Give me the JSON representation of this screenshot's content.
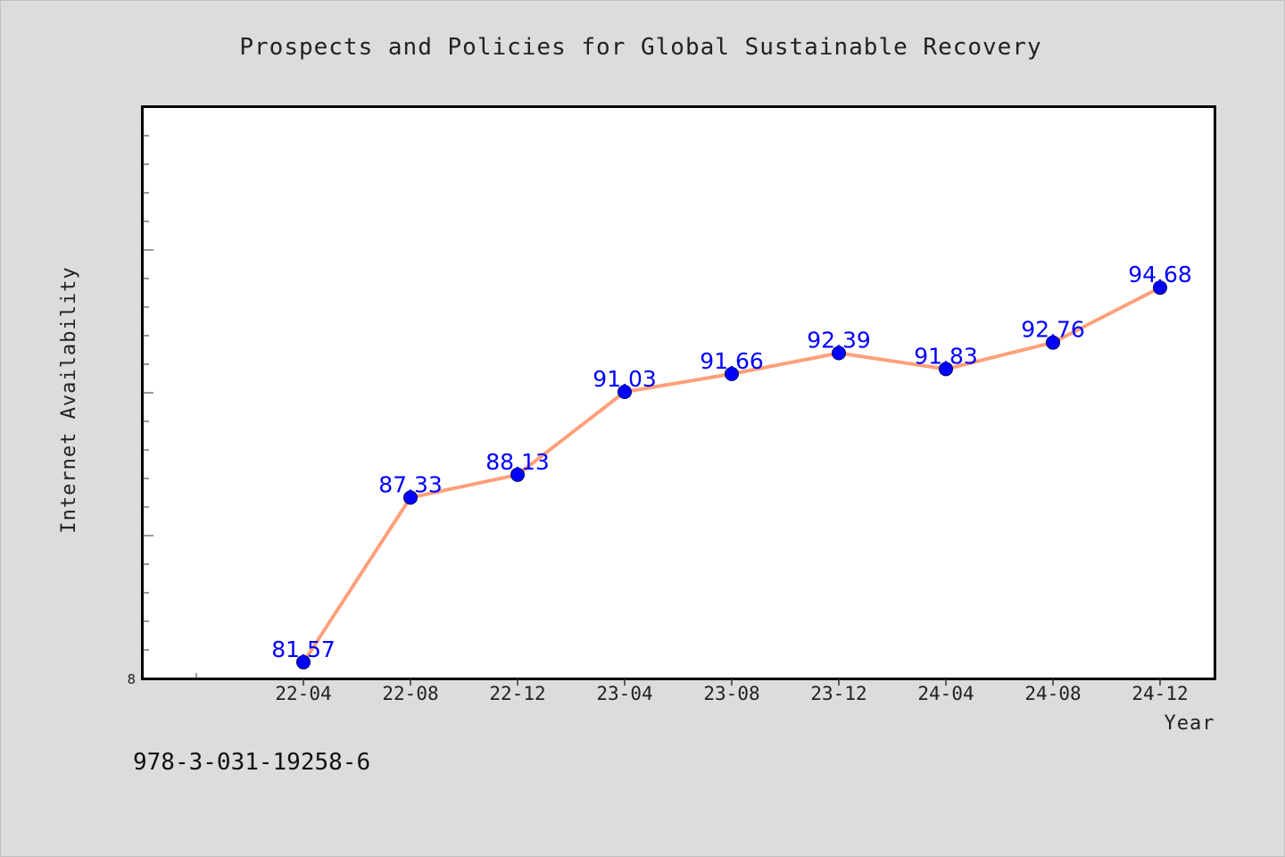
{
  "chart_data": {
    "type": "line",
    "title": "Prospects and Policies for Global Sustainable Recovery",
    "xlabel": "Year",
    "ylabel": "Internet Availability",
    "categories": [
      "22-04",
      "22-08",
      "22-12",
      "23-04",
      "23-08",
      "23-12",
      "24-04",
      "24-08",
      "24-12"
    ],
    "values": [
      81.57,
      87.33,
      88.13,
      91.03,
      91.66,
      92.39,
      91.83,
      92.76,
      94.68
    ],
    "data_labels": [
      "81.57",
      "87.33",
      "88.13",
      "91.03",
      "91.66",
      "92.39",
      "91.83",
      "92.76",
      "94.68"
    ],
    "ytick_labels": [
      "8"
    ],
    "ylim": [
      81.0,
      101.0
    ],
    "grid": false,
    "line_color": "#ffa07a",
    "marker_color": "#0000ff",
    "label_color": "#0000ff"
  },
  "footer": {
    "isbn": "978-3-031-19258-6"
  }
}
